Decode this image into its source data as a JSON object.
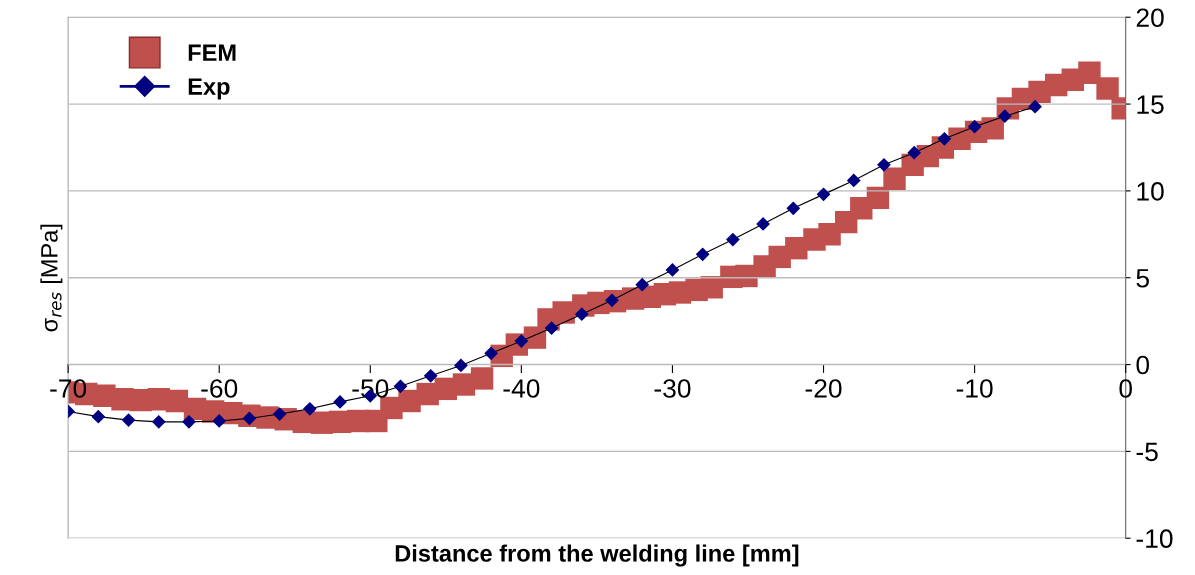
{
  "chart_data": {
    "type": "line",
    "xlabel": "Distance from the welding line [mm]",
    "ylabel": "σ$_{res}$ [MPa]",
    "xlim": [
      -70,
      0
    ],
    "xticks": [
      -70,
      -60,
      -50,
      -40,
      -30,
      -20,
      -10,
      0
    ],
    "ylim": [
      -10,
      20
    ],
    "yticks": [
      -10,
      -5,
      0,
      5,
      10,
      15,
      20
    ],
    "grid": "y",
    "legend": "top left",
    "series": [
      {
        "name": "FEM",
        "type": "scatter",
        "marker": "square",
        "color": "#c0504d",
        "x": [
          -70,
          -68.8,
          -67.6,
          -66.4,
          -65.2,
          -64,
          -62.8,
          -61.6,
          -60.4,
          -59.2,
          -58,
          -56.8,
          -55.6,
          -54.4,
          -53.2,
          -52,
          -50.8,
          -49.6,
          -48.6,
          -47.4,
          -46.2,
          -45,
          -43.8,
          -42.6,
          -41.3,
          -40.3,
          -39.1,
          -38.2,
          -37.2,
          -35.9,
          -34.9,
          -33.8,
          -32.6,
          -31.5,
          -30.5,
          -29.5,
          -28.4,
          -27.4,
          -26.1,
          -25.1,
          -23.9,
          -22.9,
          -21.8,
          -20.6,
          -19.6,
          -18.5,
          -17.5,
          -16.4,
          -15.3,
          -14.1,
          -13.1,
          -12.1,
          -11,
          -9.9,
          -8.8,
          -7.8,
          -6.8,
          -5.7,
          -4.6,
          -3.5,
          -2.4,
          -1.2,
          -0.2
        ],
        "values": [
          -1.6,
          -1.7,
          -1.8,
          -2.0,
          -2.05,
          -2.0,
          -2.1,
          -2.55,
          -2.7,
          -2.8,
          -2.95,
          -3.05,
          -3.15,
          -3.3,
          -3.35,
          -3.3,
          -3.25,
          -3.25,
          -2.5,
          -2.1,
          -1.7,
          -1.4,
          -1.15,
          -0.8,
          0.5,
          1.15,
          1.55,
          2.6,
          3.0,
          3.4,
          3.55,
          3.65,
          3.8,
          3.9,
          4.05,
          4.15,
          4.3,
          4.45,
          5.05,
          5.1,
          5.65,
          6.2,
          6.7,
          7.2,
          7.5,
          8.2,
          9.0,
          9.6,
          10.7,
          11.5,
          12.0,
          12.5,
          13.0,
          13.4,
          13.6,
          14.75,
          15.3,
          15.7,
          16.1,
          16.4,
          16.8,
          15.9,
          14.75
        ]
      },
      {
        "name": "Exp",
        "marker": "diamond",
        "line_style": "solid",
        "color": "#000080",
        "x": [
          -70,
          -68,
          -66,
          -64,
          -62,
          -60,
          -58,
          -56,
          -54,
          -52,
          -50,
          -48,
          -46,
          -44,
          -42,
          -40,
          -38,
          -36,
          -34,
          -32,
          -30,
          -28,
          -26,
          -24,
          -22,
          -20,
          -18,
          -16,
          -14,
          -12,
          -10,
          -8,
          -6
        ],
        "values": [
          -2.7,
          -3.0,
          -3.2,
          -3.3,
          -3.3,
          -3.25,
          -3.1,
          -2.85,
          -2.55,
          -2.15,
          -1.8,
          -1.25,
          -0.65,
          -0.05,
          0.65,
          1.35,
          2.1,
          2.9,
          3.7,
          4.6,
          5.45,
          6.35,
          7.2,
          8.1,
          9.0,
          9.8,
          10.6,
          11.5,
          12.2,
          13.0,
          13.7,
          14.3,
          14.85
        ]
      }
    ]
  }
}
